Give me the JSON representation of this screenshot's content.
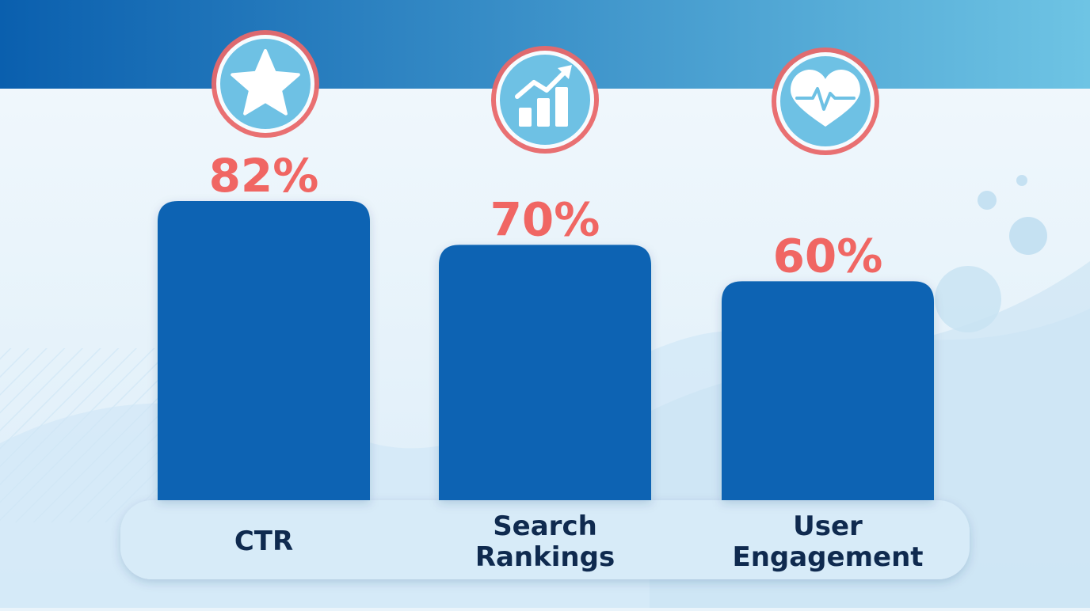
{
  "chart_data": {
    "type": "bar",
    "categories": [
      "CTR",
      "Search Rankings",
      "User Engagement"
    ],
    "values": [
      82,
      70,
      60
    ],
    "data_labels": [
      "82%",
      "70%",
      "60%"
    ],
    "icons": [
      "star-icon",
      "growth-chart-icon",
      "heart-pulse-icon"
    ],
    "title": "",
    "xlabel": "",
    "ylabel": "",
    "grid": false,
    "legend": "none"
  },
  "colors": {
    "bar": "#0864b3",
    "value_label": "#f06663",
    "category_label": "#0f2a4f",
    "icon_fill": "#6ec1e4",
    "icon_ring": "#e8686a",
    "header_left": "#0a5fae",
    "header_right": "#6ec4e4"
  }
}
